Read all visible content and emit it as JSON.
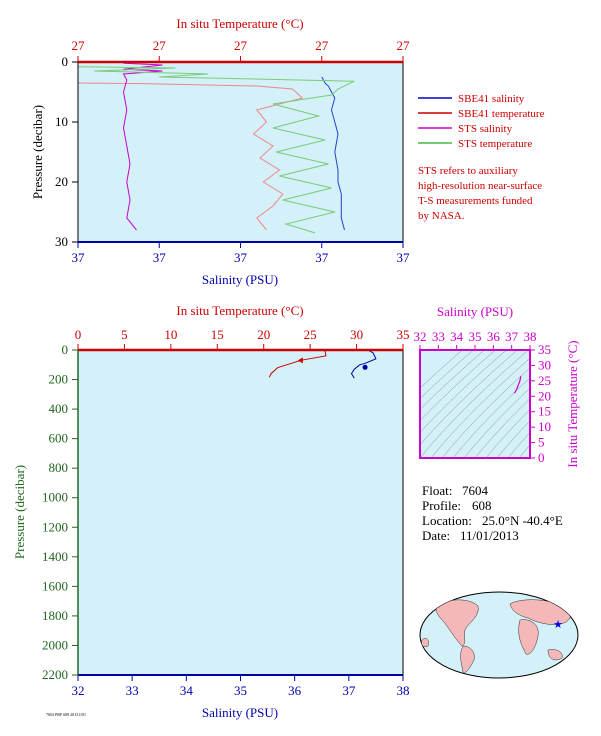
{
  "colors": {
    "plot_bg": "#d4f0f8",
    "sbe41_salinity": "#2244cc",
    "sbe41_temperature": "#ee8888",
    "sts_salinity": "#cc00cc",
    "sts_temperature": "#77cc77",
    "red_axis": "#cc0000",
    "blue_axis": "#0000aa",
    "green_axis": "#226622",
    "magenta_axis": "#cc00cc",
    "land": "#f4b8b8",
    "ocean": "#d4f0f8"
  },
  "chart_data": [
    {
      "type": "line",
      "name": "upper-profile",
      "top_axis": {
        "label": "In situ Temperature (°C)",
        "ticks": [
          "27",
          "27",
          "27",
          "27",
          "27"
        ]
      },
      "bottom_axis": {
        "label": "Salinity (PSU)",
        "ticks": [
          "37",
          "37",
          "37",
          "37",
          "37"
        ]
      },
      "left_axis": {
        "label": "Pressure (decibar)",
        "ticks": [
          "0",
          "10",
          "20",
          "30"
        ],
        "ylim": [
          0,
          30
        ]
      },
      "xlim": [
        0,
        1
      ],
      "legend": [
        {
          "label": "SBE41 salinity",
          "color": "#0000cc"
        },
        {
          "label": "SBE41 temperature",
          "color": "#cc0000"
        },
        {
          "label": "STS salinity",
          "color": "#cc00cc"
        },
        {
          "label": "STS temperature",
          "color": "#44bb44"
        }
      ],
      "note": [
        "STS refers to auxiliary",
        "high-resolution near-surface",
        "T-S measurements funded",
        "by NASA."
      ],
      "series": [
        {
          "name": "SBE41 salinity",
          "points": [
            [
              0.75,
              2.5
            ],
            [
              0.76,
              3.5
            ],
            [
              0.77,
              4.0
            ],
            [
              0.78,
              5
            ],
            [
              0.79,
              6
            ],
            [
              0.78,
              8
            ],
            [
              0.79,
              10
            ],
            [
              0.8,
              12
            ],
            [
              0.79,
              15
            ],
            [
              0.8,
              18
            ],
            [
              0.8,
              20
            ],
            [
              0.81,
              22
            ],
            [
              0.81,
              24
            ],
            [
              0.81,
              26
            ],
            [
              0.82,
              28
            ]
          ]
        },
        {
          "name": "SBE41 temperature",
          "points": [
            [
              0.0,
              3.5
            ],
            [
              0.2,
              3.6
            ],
            [
              0.55,
              4.0
            ],
            [
              0.66,
              4.5
            ],
            [
              0.69,
              6.0
            ],
            [
              0.55,
              8.0
            ],
            [
              0.58,
              10
            ],
            [
              0.54,
              12
            ],
            [
              0.6,
              14
            ],
            [
              0.56,
              16
            ],
            [
              0.62,
              18
            ],
            [
              0.57,
              20
            ],
            [
              0.63,
              22
            ],
            [
              0.6,
              24
            ],
            [
              0.55,
              26
            ],
            [
              0.58,
              28
            ]
          ]
        },
        {
          "name": "STS salinity",
          "points": [
            [
              0.14,
              0.2
            ],
            [
              0.26,
              0.5
            ],
            [
              0.14,
              1.2
            ],
            [
              0.26,
              1.5
            ],
            [
              0.14,
              2.0
            ],
            [
              0.15,
              3.0
            ],
            [
              0.14,
              5
            ],
            [
              0.15,
              8
            ],
            [
              0.14,
              11
            ],
            [
              0.15,
              14
            ],
            [
              0.16,
              17
            ],
            [
              0.15,
              20
            ],
            [
              0.16,
              23
            ],
            [
              0.15,
              26
            ],
            [
              0.18,
              28
            ]
          ]
        },
        {
          "name": "STS temperature",
          "points": [
            [
              0.0,
              0.8
            ],
            [
              0.3,
              1.0
            ],
            [
              0.05,
              1.5
            ],
            [
              0.4,
              2.0
            ],
            [
              0.25,
              2.5
            ],
            [
              0.85,
              3.2
            ],
            [
              0.8,
              4.5
            ],
            [
              0.78,
              5.5
            ],
            [
              0.6,
              7
            ],
            [
              0.74,
              9
            ],
            [
              0.6,
              11
            ],
            [
              0.76,
              13
            ],
            [
              0.61,
              15
            ],
            [
              0.77,
              17
            ],
            [
              0.62,
              19
            ],
            [
              0.78,
              21
            ],
            [
              0.63,
              23
            ],
            [
              0.79,
              25
            ],
            [
              0.64,
              27
            ],
            [
              0.73,
              28.5
            ]
          ]
        }
      ]
    },
    {
      "type": "line",
      "name": "lower-profile",
      "top_axis": {
        "label": "In situ Temperature (°C)",
        "ticks": [
          "0",
          "5",
          "10",
          "15",
          "20",
          "25",
          "30",
          "35"
        ],
        "xlim": [
          0,
          35
        ]
      },
      "bottom_axis": {
        "label": "Salinity (PSU)",
        "ticks": [
          "32",
          "33",
          "34",
          "35",
          "36",
          "37",
          "38"
        ],
        "xlim": [
          32,
          38
        ]
      },
      "left_axis": {
        "label": "Pressure (decibar)",
        "ticks": [
          "0",
          "200",
          "400",
          "600",
          "800",
          "1000",
          "1200",
          "1400",
          "1600",
          "1800",
          "2000",
          "2200"
        ],
        "ylim": [
          0,
          2200
        ]
      },
      "series": [
        {
          "name": "temperature",
          "axis": "top",
          "points": [
            [
              26.4,
              0
            ],
            [
              26.6,
              5
            ],
            [
              26.7,
              40
            ],
            [
              24.0,
              70
            ],
            [
              21.5,
              120
            ],
            [
              20.8,
              160
            ],
            [
              20.6,
              185
            ]
          ]
        },
        {
          "name": "salinity",
          "axis": "bottom",
          "points": [
            [
              37.35,
              0
            ],
            [
              37.45,
              20
            ],
            [
              37.5,
              60
            ],
            [
              37.3,
              90
            ],
            [
              37.2,
              100
            ],
            [
              37.1,
              130
            ],
            [
              37.05,
              160
            ],
            [
              37.1,
              190
            ]
          ]
        }
      ]
    },
    {
      "type": "line",
      "name": "ts-diagram",
      "top_axis": {
        "label": "Salinity (PSU)",
        "ticks": [
          "32",
          "33",
          "34",
          "35",
          "36",
          "37",
          "38"
        ],
        "xlim": [
          32,
          38
        ]
      },
      "right_axis": {
        "label": "In situ Temperature (°C)",
        "ticks": [
          "0",
          "5",
          "10",
          "15",
          "20",
          "25",
          "30",
          "35"
        ],
        "ylim": [
          0,
          35
        ]
      },
      "series": [
        {
          "name": "ts",
          "points": [
            [
              37.5,
              26.5
            ],
            [
              37.45,
              25
            ],
            [
              37.35,
              23.5
            ],
            [
              37.25,
              22
            ],
            [
              37.15,
              21
            ]
          ]
        }
      ]
    }
  ],
  "info": {
    "float_label": "Float:",
    "float_value": "7604",
    "profile_label": "Profile:",
    "profile_value": "608",
    "location_label": "Location:",
    "location_value": "25.0°N  -40.4°E",
    "date_label": "Date:",
    "date_value": "11/01/2013"
  },
  "map": {
    "marker_lat": 25.0,
    "marker_lon": -40.4,
    "marker_symbol": "★"
  },
  "footer": "7604 PRF 608 20131101"
}
